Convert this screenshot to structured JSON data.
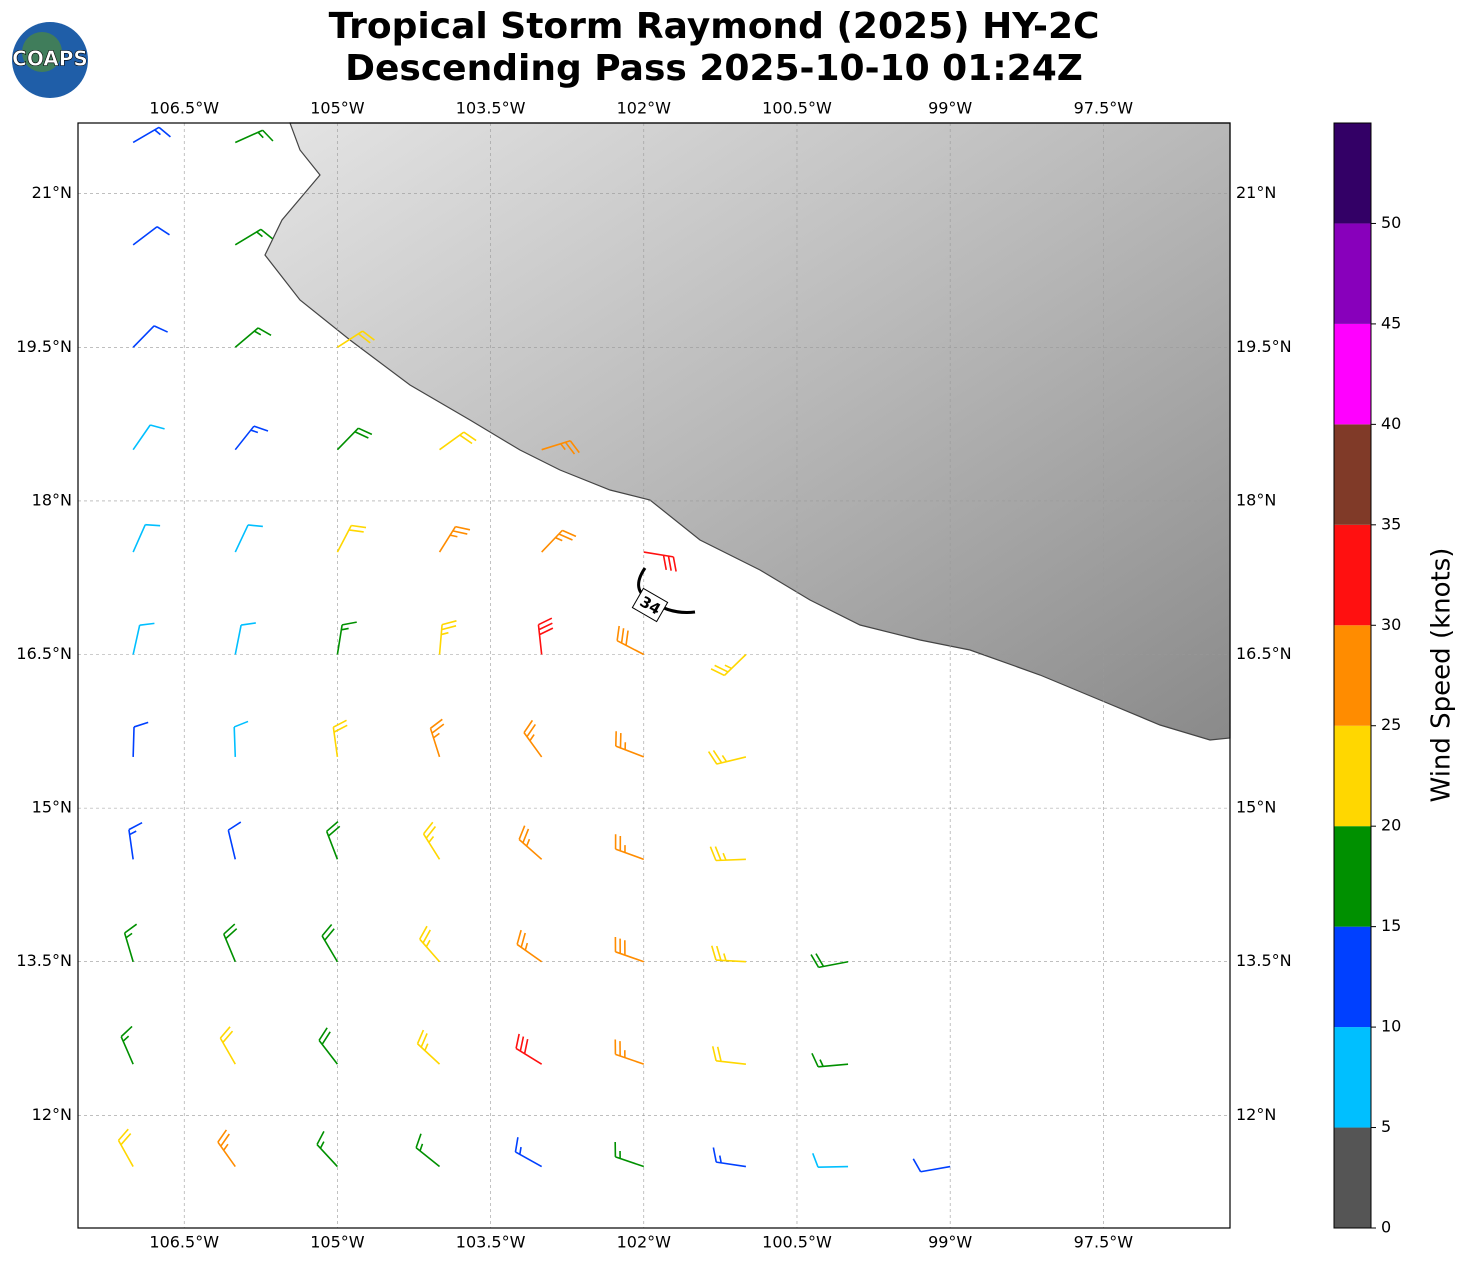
{
  "logo": "COAPS",
  "chart_data": {
    "type": "wind-barbs",
    "title": [
      "Tropical Storm Raymond (2025) HY-2C",
      "Descending Pass 2025-10-10 01:24Z"
    ],
    "xlim": [
      -107.54,
      -96.26
    ],
    "ylim": [
      10.9,
      21.69
    ],
    "xticks": [
      {
        "value": -106.5,
        "label": "106.5°W"
      },
      {
        "value": -105,
        "label": "105°W"
      },
      {
        "value": -103.5,
        "label": "103.5°W"
      },
      {
        "value": -102,
        "label": "102°W"
      },
      {
        "value": -100.5,
        "label": "100.5°W"
      },
      {
        "value": -99,
        "label": "99°W"
      },
      {
        "value": -97.5,
        "label": "97.5°W"
      }
    ],
    "yticks": [
      {
        "value": 12,
        "label": "12°N"
      },
      {
        "value": 13.5,
        "label": "13.5°N"
      },
      {
        "value": 15,
        "label": "15°N"
      },
      {
        "value": 16.5,
        "label": "16.5°N"
      },
      {
        "value": 18,
        "label": "18°N"
      },
      {
        "value": 19.5,
        "label": "19.5°N"
      },
      {
        "value": 21,
        "label": "21°N"
      }
    ],
    "grid": true,
    "contour_label": 34,
    "wind": {
      "lon": [
        -107,
        -106,
        -105,
        -104,
        -103,
        -102,
        -101,
        -100,
        -99,
        -98
      ],
      "lat": [
        21.5,
        20.5,
        19.5,
        18.5,
        17.5,
        16.5,
        15.5,
        14.5,
        13.5,
        12.5,
        11.5
      ],
      "speed": [
        [
          13,
          17,
          null,
          null,
          null,
          null,
          null,
          null,
          null,
          null
        ],
        [
          12,
          17,
          null,
          null,
          null,
          null,
          null,
          null,
          null,
          null
        ],
        [
          12,
          16,
          21,
          null,
          null,
          null,
          null,
          null,
          null,
          null
        ],
        [
          8,
          14,
          18,
          22,
          27,
          null,
          null,
          null,
          null,
          null
        ],
        [
          8,
          9,
          22,
          26,
          27,
          31,
          null,
          null,
          null,
          null
        ],
        [
          9,
          9,
          17,
          23,
          31,
          28,
          23,
          null,
          null,
          null
        ],
        [
          12,
          8,
          22,
          26,
          27,
          26,
          24,
          null,
          null,
          null
        ],
        [
          13,
          12,
          18,
          23,
          26,
          27,
          23,
          null,
          null,
          null
        ],
        [
          17,
          18,
          19,
          24,
          27,
          28,
          23,
          18,
          null,
          null
        ],
        [
          16,
          21,
          18,
          24,
          31,
          27,
          22,
          17,
          null,
          null
        ],
        [
          21,
          25,
          17,
          16,
          13,
          16,
          14,
          9,
          12,
          null
        ]
      ]
    },
    "colorbar": {
      "label": "Wind Speed (knots)",
      "bounds": [
        0,
        5,
        10,
        15,
        20,
        25,
        30,
        35,
        40,
        45,
        50,
        55
      ],
      "colors": [
        "#555555",
        "#00bfff",
        "#0040ff",
        "#009000",
        "#ffd700",
        "#ff8c00",
        "#ff1010",
        "#803a28",
        "#ff00ff",
        "#8800bb",
        "#330066"
      ],
      "ticks": [
        0,
        5,
        10,
        15,
        20,
        25,
        30,
        35,
        40,
        45,
        50
      ]
    }
  }
}
